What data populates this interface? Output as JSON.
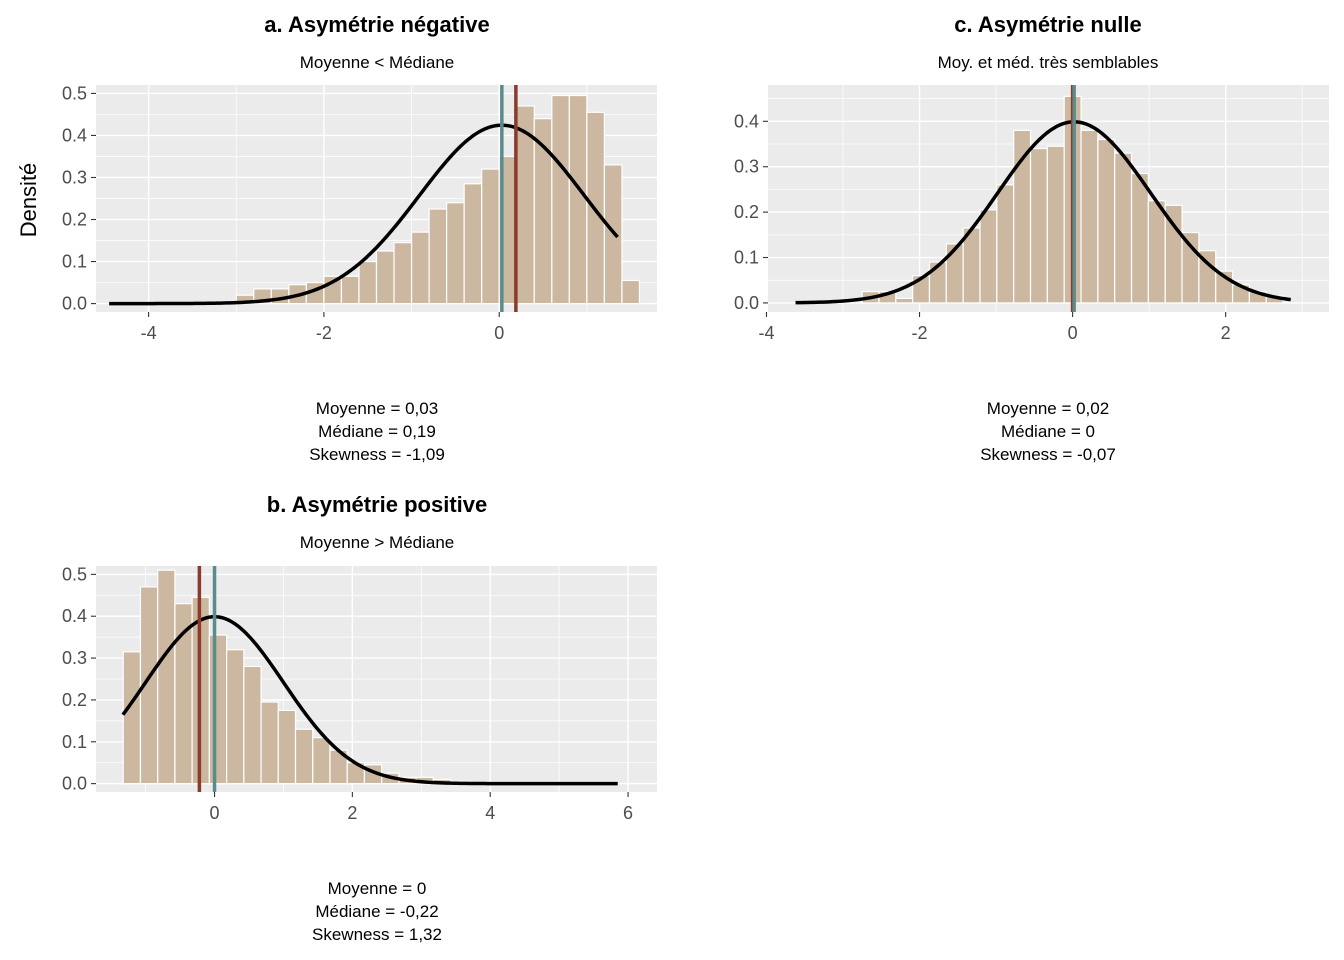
{
  "figure": {
    "ylabel": "Densité"
  },
  "chart_data": [
    {
      "type": "bar",
      "id": "negative",
      "title": "a. Asymétrie négative",
      "subtitle": "Moyenne < Médiane",
      "xlabel": "",
      "ylabel": "Densité",
      "xlim": [
        -4.6,
        1.8
      ],
      "ylim": [
        -0.02,
        0.52
      ],
      "xticks": [
        -4,
        -2,
        0
      ],
      "yticks": [
        0.0,
        0.1,
        0.2,
        0.3,
        0.4,
        0.5
      ],
      "bin_width": 0.2,
      "bins_x": [
        -3.1,
        -2.9,
        -2.7,
        -2.5,
        -2.3,
        -2.1,
        -1.9,
        -1.7,
        -1.5,
        -1.3,
        -1.1,
        -0.9,
        -0.7,
        -0.5,
        -0.3,
        -0.1,
        0.1,
        0.3,
        0.5,
        0.7,
        0.9,
        1.1,
        1.3,
        1.5
      ],
      "bins_y": [
        0.005,
        0.02,
        0.035,
        0.035,
        0.045,
        0.05,
        0.065,
        0.065,
        0.1,
        0.125,
        0.145,
        0.17,
        0.225,
        0.24,
        0.285,
        0.32,
        0.35,
        0.47,
        0.44,
        0.495,
        0.495,
        0.455,
        0.33,
        0.055
      ],
      "curve": {
        "mean": 0.03,
        "sd": 0.94,
        "from": -4.45,
        "to": 1.35
      },
      "vlines": [
        {
          "name": "Moyenne",
          "x": 0.03,
          "color": "#5a8c8c"
        },
        {
          "name": "Médiane",
          "x": 0.19,
          "color": "#8b3a2b"
        }
      ],
      "stats": [
        "Moyenne = 0,03",
        "Médiane = 0,19",
        "Skewness = -1,09"
      ],
      "colors": {
        "bar_fill": "#ccb8a1",
        "bar_stroke": "#ffffff",
        "panel": "#ebebeb",
        "curve": "#000000"
      }
    },
    {
      "type": "bar",
      "id": "positive",
      "title": "b. Asymétrie positive",
      "subtitle": "Moyenne > Médiane",
      "xlabel": "",
      "ylabel": "",
      "xlim": [
        -1.72,
        6.42
      ],
      "ylim": [
        -0.02,
        0.52
      ],
      "xticks": [
        0,
        2,
        4,
        6
      ],
      "yticks": [
        0.0,
        0.1,
        0.2,
        0.3,
        0.4,
        0.5
      ],
      "bin_width": 0.25,
      "bins_x": [
        -1.2,
        -0.95,
        -0.7,
        -0.45,
        -0.2,
        0.05,
        0.3,
        0.55,
        0.8,
        1.05,
        1.3,
        1.55,
        1.8,
        2.05,
        2.3,
        2.55,
        2.8,
        3.05,
        3.3,
        3.55
      ],
      "bins_y": [
        0.315,
        0.47,
        0.51,
        0.43,
        0.445,
        0.355,
        0.32,
        0.28,
        0.195,
        0.175,
        0.13,
        0.11,
        0.08,
        0.05,
        0.045,
        0.025,
        0.015,
        0.015,
        0.01,
        0.005
      ],
      "curve": {
        "mean": 0.0,
        "sd": 1.0,
        "from": -1.33,
        "to": 5.85
      },
      "vlines": [
        {
          "name": "Médiane",
          "x": -0.22,
          "color": "#8b3a2b"
        },
        {
          "name": "Moyenne",
          "x": 0.0,
          "color": "#5a8c8c"
        }
      ],
      "stats": [
        "Moyenne = 0",
        "Médiane = -0,22",
        "Skewness = 1,32"
      ],
      "colors": {
        "bar_fill": "#ccb8a1",
        "bar_stroke": "#ffffff",
        "panel": "#ebebeb",
        "curve": "#000000"
      }
    },
    {
      "type": "bar",
      "id": "nulle",
      "title": "c. Asymétrie nulle",
      "subtitle": "Moy. et méd. très semblables",
      "xlabel": "",
      "ylabel": "",
      "xlim": [
        -3.98,
        3.35
      ],
      "ylim": [
        -0.02,
        0.48
      ],
      "xticks": [
        -4,
        -2,
        0,
        2
      ],
      "yticks": [
        0.0,
        0.1,
        0.2,
        0.3,
        0.4
      ],
      "bin_width": 0.22,
      "bins_x": [
        -2.64,
        -2.42,
        -2.2,
        -1.98,
        -1.76,
        -1.54,
        -1.32,
        -1.1,
        -0.88,
        -0.66,
        -0.44,
        -0.22,
        0.0,
        0.22,
        0.44,
        0.66,
        0.88,
        1.1,
        1.32,
        1.54,
        1.76,
        1.98,
        2.2,
        2.42,
        2.64
      ],
      "bins_y": [
        0.025,
        0.025,
        0.01,
        0.06,
        0.09,
        0.13,
        0.165,
        0.205,
        0.26,
        0.38,
        0.34,
        0.345,
        0.455,
        0.38,
        0.36,
        0.33,
        0.285,
        0.225,
        0.215,
        0.155,
        0.115,
        0.07,
        0.04,
        0.025,
        0.015
      ],
      "curve": {
        "mean": 0.02,
        "sd": 1.0,
        "from": -3.62,
        "to": 2.85
      },
      "vlines": [
        {
          "name": "Médiane",
          "x": 0.0,
          "color": "#8b3a2b"
        },
        {
          "name": "Moyenne",
          "x": 0.02,
          "color": "#5a8c8c"
        }
      ],
      "stats": [
        "Moyenne = 0,02",
        "Médiane = 0",
        "Skewness = -0,07"
      ],
      "colors": {
        "bar_fill": "#ccb8a1",
        "bar_stroke": "#ffffff",
        "panel": "#ebebeb",
        "curve": "#000000"
      }
    }
  ]
}
